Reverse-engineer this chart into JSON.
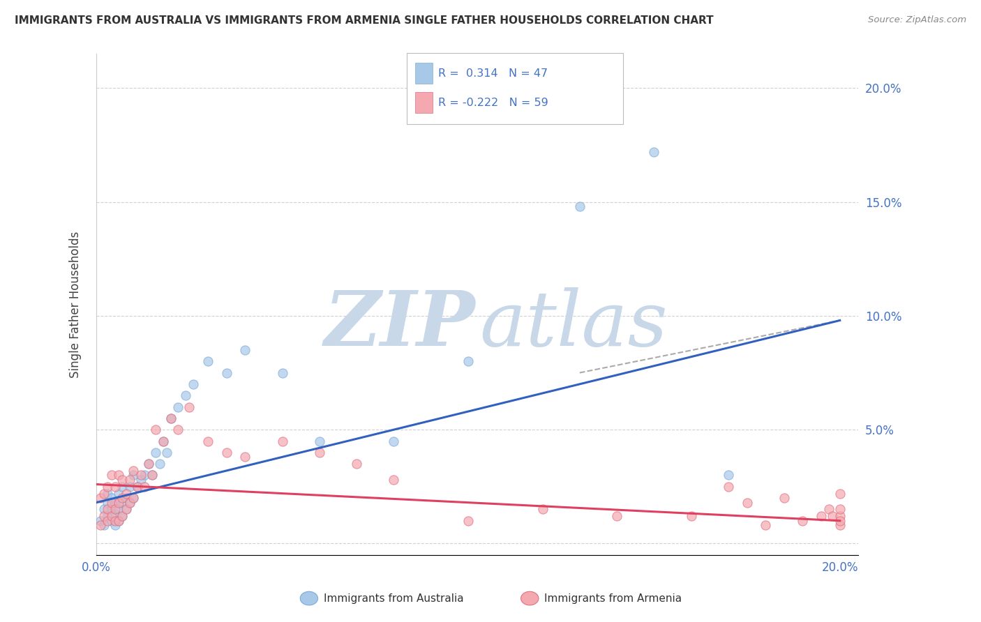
{
  "title": "IMMIGRANTS FROM AUSTRALIA VS IMMIGRANTS FROM ARMENIA SINGLE FATHER HOUSEHOLDS CORRELATION CHART",
  "source": "Source: ZipAtlas.com",
  "ylabel": "Single Father Households",
  "xlim": [
    0.0,
    0.205
  ],
  "ylim": [
    -0.005,
    0.215
  ],
  "color_australia": "#a8c8e8",
  "color_armenia": "#f4a8b0",
  "color_australia_line": "#3060c0",
  "color_armenia_line": "#e04060",
  "watermark_zip_color": "#c8d8e8",
  "watermark_atlas_color": "#c8d8e8",
  "background_color": "#ffffff",
  "grid_color": "#cccccc",
  "title_color": "#333333",
  "tick_color": "#4472c4",
  "label_color": "#4472c4",
  "australia_x": [
    0.001,
    0.002,
    0.002,
    0.003,
    0.003,
    0.003,
    0.004,
    0.004,
    0.004,
    0.005,
    0.005,
    0.005,
    0.006,
    0.006,
    0.006,
    0.007,
    0.007,
    0.007,
    0.008,
    0.008,
    0.009,
    0.009,
    0.01,
    0.01,
    0.011,
    0.012,
    0.013,
    0.014,
    0.015,
    0.016,
    0.017,
    0.018,
    0.019,
    0.02,
    0.022,
    0.024,
    0.026,
    0.03,
    0.035,
    0.04,
    0.05,
    0.06,
    0.08,
    0.1,
    0.13,
    0.15,
    0.17
  ],
  "australia_y": [
    0.01,
    0.015,
    0.008,
    0.012,
    0.018,
    0.022,
    0.01,
    0.015,
    0.02,
    0.008,
    0.013,
    0.018,
    0.01,
    0.015,
    0.022,
    0.012,
    0.018,
    0.025,
    0.015,
    0.02,
    0.018,
    0.025,
    0.02,
    0.03,
    0.025,
    0.028,
    0.03,
    0.035,
    0.03,
    0.04,
    0.035,
    0.045,
    0.04,
    0.055,
    0.06,
    0.065,
    0.07,
    0.08,
    0.075,
    0.085,
    0.075,
    0.045,
    0.045,
    0.08,
    0.148,
    0.172,
    0.03
  ],
  "armenia_x": [
    0.001,
    0.001,
    0.002,
    0.002,
    0.003,
    0.003,
    0.003,
    0.004,
    0.004,
    0.004,
    0.005,
    0.005,
    0.005,
    0.006,
    0.006,
    0.006,
    0.007,
    0.007,
    0.007,
    0.008,
    0.008,
    0.009,
    0.009,
    0.01,
    0.01,
    0.011,
    0.012,
    0.013,
    0.014,
    0.015,
    0.016,
    0.018,
    0.02,
    0.022,
    0.025,
    0.03,
    0.035,
    0.04,
    0.05,
    0.06,
    0.07,
    0.08,
    0.1,
    0.12,
    0.14,
    0.16,
    0.17,
    0.175,
    0.18,
    0.185,
    0.19,
    0.195,
    0.197,
    0.198,
    0.2,
    0.2,
    0.2,
    0.2,
    0.2
  ],
  "armenia_y": [
    0.008,
    0.02,
    0.012,
    0.022,
    0.01,
    0.015,
    0.025,
    0.012,
    0.018,
    0.03,
    0.01,
    0.015,
    0.025,
    0.01,
    0.018,
    0.03,
    0.012,
    0.02,
    0.028,
    0.015,
    0.022,
    0.018,
    0.028,
    0.02,
    0.032,
    0.025,
    0.03,
    0.025,
    0.035,
    0.03,
    0.05,
    0.045,
    0.055,
    0.05,
    0.06,
    0.045,
    0.04,
    0.038,
    0.045,
    0.04,
    0.035,
    0.028,
    0.01,
    0.015,
    0.012,
    0.012,
    0.025,
    0.018,
    0.008,
    0.02,
    0.01,
    0.012,
    0.015,
    0.012,
    0.022,
    0.012,
    0.008,
    0.015,
    0.01
  ],
  "aus_line_x": [
    0.0,
    0.2
  ],
  "aus_line_y": [
    0.018,
    0.098
  ],
  "arm_line_x": [
    0.0,
    0.2
  ],
  "arm_line_y": [
    0.026,
    0.01
  ],
  "dash_line_x": [
    0.13,
    0.2
  ],
  "dash_line_y": [
    0.075,
    0.098
  ]
}
